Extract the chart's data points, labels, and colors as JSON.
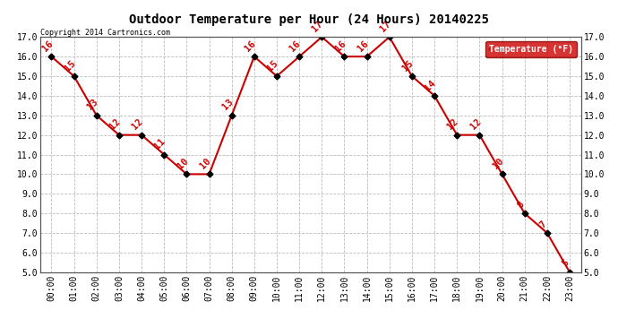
{
  "title": "Outdoor Temperature per Hour (24 Hours) 20140225",
  "copyright": "Copyright 2014 Cartronics.com",
  "legend_label": "Temperature (°F)",
  "hours": [
    "00:00",
    "01:00",
    "02:00",
    "03:00",
    "04:00",
    "05:00",
    "06:00",
    "07:00",
    "08:00",
    "09:00",
    "10:00",
    "11:00",
    "12:00",
    "13:00",
    "14:00",
    "15:00",
    "16:00",
    "17:00",
    "18:00",
    "19:00",
    "20:00",
    "21:00",
    "22:00",
    "23:00"
  ],
  "temps": [
    16,
    15,
    13,
    12,
    12,
    11,
    10,
    10,
    13,
    16,
    15,
    16,
    17,
    16,
    16,
    17,
    15,
    14,
    12,
    12,
    10,
    8,
    7,
    5
  ],
  "ylim_min": 5.0,
  "ylim_max": 17.0,
  "yticks": [
    5.0,
    6.0,
    7.0,
    8.0,
    9.0,
    10.0,
    11.0,
    12.0,
    13.0,
    14.0,
    15.0,
    16.0,
    17.0
  ],
  "line_color": "#cc0000",
  "marker_color": "black",
  "label_color": "#cc0000",
  "background_color": "#ffffff",
  "grid_color": "#bbbbbb",
  "legend_bg": "#cc0000",
  "legend_text_color": "white",
  "title_fontsize": 10,
  "tick_fontsize": 7,
  "label_fontsize": 7.5
}
